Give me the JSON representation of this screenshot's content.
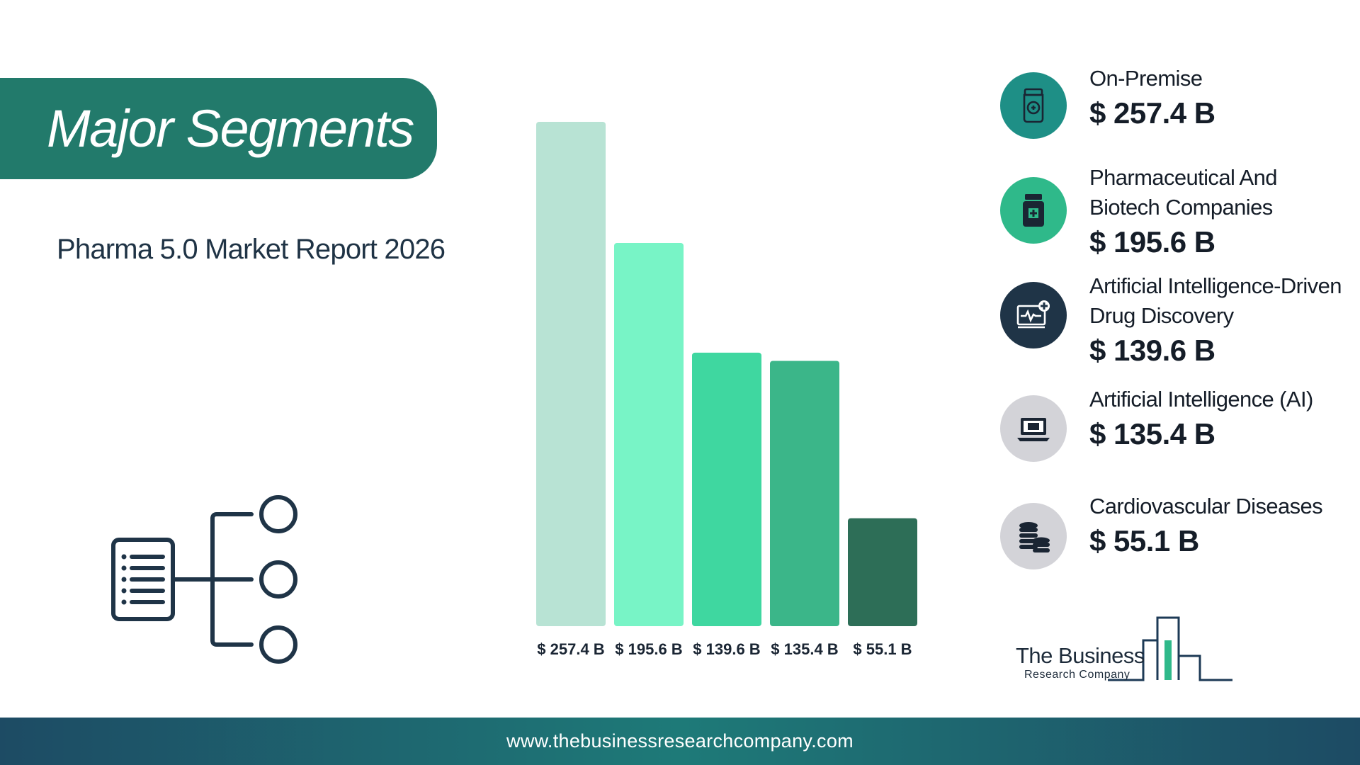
{
  "header": {
    "title": "Major Segments",
    "subtitle": "Pharma 5.0 Market Report 2026"
  },
  "colors": {
    "banner": "#227a6b",
    "bars": [
      "#b8e3d4",
      "#78f4c6",
      "#3fd7a0",
      "#3bb689",
      "#2d6e57"
    ]
  },
  "chart_data": {
    "type": "bar",
    "categories": [
      "On-Premise",
      "Pharmaceutical And Biotech Companies",
      "Artificial Intelligence-Driven Drug Discovery",
      "Artificial Intelligence (AI)",
      "Cardiovascular Diseases"
    ],
    "values": [
      257.4,
      195.6,
      139.6,
      135.4,
      55.1
    ],
    "value_labels": [
      "$ 257.4 B",
      "$ 195.6 B",
      "$ 139.6 B",
      "$ 135.4 B",
      "$ 55.1 B"
    ],
    "ylim": [
      0,
      257.4
    ],
    "grid": false
  },
  "legend": [
    {
      "name_lines": [
        "On-Premise"
      ],
      "value": "$ 257.4 B",
      "icon": "medicine-bottle-icon",
      "color": "#1e8f86"
    },
    {
      "name_lines": [
        "Pharmaceutical And",
        "Biotech Companies"
      ],
      "value": "$ 195.6 B",
      "icon": "pill-bottle-icon",
      "color": "#2fb98a"
    },
    {
      "name_lines": [
        "Artificial Intelligence-Driven",
        "Drug Discovery"
      ],
      "value": "$ 139.6 B",
      "icon": "medical-monitor-icon",
      "color": "#1f3447"
    },
    {
      "name_lines": [
        "Artificial Intelligence (AI)"
      ],
      "value": "$ 135.4 B",
      "icon": "laptop-icon",
      "color": "#d3d3d8"
    },
    {
      "name_lines": [
        "Cardiovascular Diseases"
      ],
      "value": "$ 55.1 B",
      "icon": "coin-stack-icon",
      "color": "#d3d3d8"
    }
  ],
  "logo": {
    "line1": "The Business",
    "line2": "Research Company"
  },
  "footer": {
    "url": "www.thebusinessresearchcompany.com"
  }
}
